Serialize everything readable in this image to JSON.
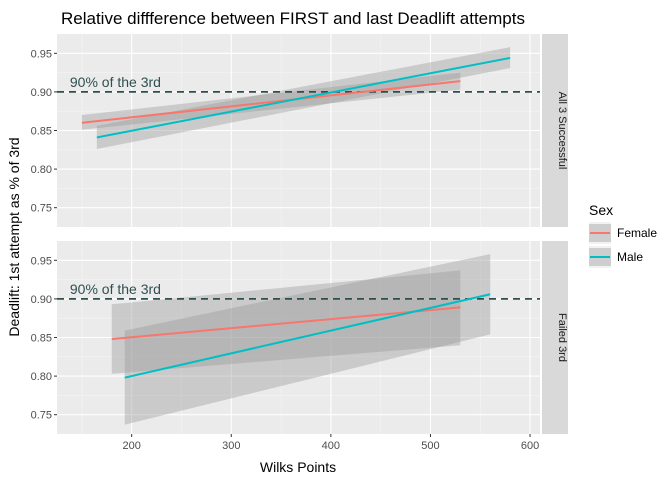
{
  "chart_data": {
    "type": "line",
    "title": "Relative diffference between FIRST and last Deadlift attempts",
    "xlabel": "Wilks Points",
    "ylabel": "Deadlift: 1st attempt as % of 3rd",
    "xlim": [
      125,
      610
    ],
    "xticks": [
      200,
      300,
      400,
      500,
      600
    ],
    "ylim": [
      0.725,
      0.975
    ],
    "yticks": [
      0.75,
      0.8,
      0.85,
      0.9,
      0.95
    ],
    "grid": true,
    "reference_line": {
      "y": 0.9,
      "label": "90% of the 3rd",
      "label_x": 150,
      "color": "#2f4f4f"
    },
    "legend": {
      "title": "Sex",
      "position": "right"
    },
    "series_style": [
      {
        "name": "Female",
        "color": "#F8766D"
      },
      {
        "name": "Male",
        "color": "#00BFC4"
      }
    ],
    "facets": [
      {
        "label": "All 3 Successful",
        "series": [
          {
            "name": "Female",
            "x": [
              150,
              530
            ],
            "y": [
              0.86,
              0.914
            ],
            "ci_low": [
              0.851,
              0.903
            ],
            "ci_high": [
              0.87,
              0.925
            ]
          },
          {
            "name": "Male",
            "x": [
              165,
              580
            ],
            "y": [
              0.841,
              0.944
            ],
            "ci_low": [
              0.826,
              0.931
            ],
            "ci_high": [
              0.856,
              0.958
            ]
          }
        ]
      },
      {
        "label": "Failed 3rd",
        "series": [
          {
            "name": "Female",
            "x": [
              180,
              530
            ],
            "y": [
              0.848,
              0.889
            ],
            "ci_low": [
              0.803,
              0.84
            ],
            "ci_high": [
              0.893,
              0.937
            ]
          },
          {
            "name": "Male",
            "x": [
              193,
              560
            ],
            "y": [
              0.798,
              0.906
            ],
            "ci_low": [
              0.737,
              0.854
            ],
            "ci_high": [
              0.859,
              0.958
            ]
          }
        ]
      }
    ]
  }
}
